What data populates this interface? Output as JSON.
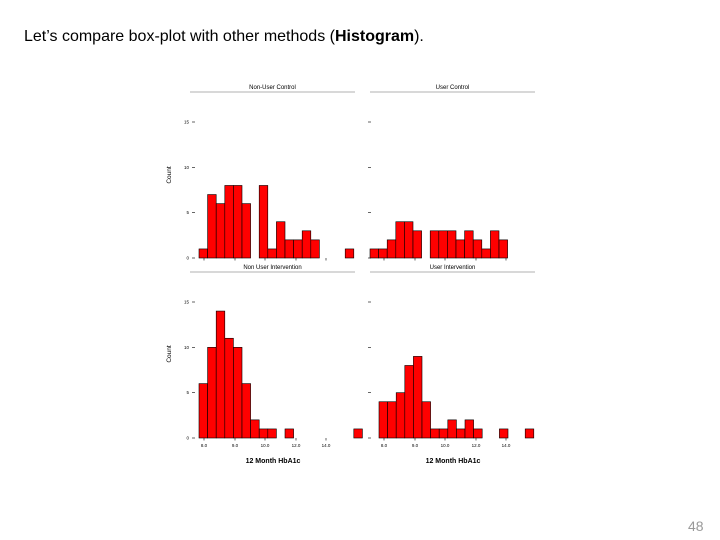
{
  "slide": {
    "title_prefix": "Let’s compare box-plot with other methods (",
    "title_emphasis": "Histogram",
    "title_suffix": ").",
    "page_number": "48"
  },
  "colors": {
    "bar_fill": "#ff0000",
    "bar_stroke": "#000000",
    "header_line": "#999999"
  },
  "chart_data": {
    "type": "bar",
    "layout": "2x2 faceted histogram panels",
    "xlabel": "12 Month HbA1c",
    "ylabel": "Count",
    "xticks": [
      "8.0",
      "9.0",
      "10.0",
      "12.0",
      "14.0"
    ],
    "panels": [
      {
        "title": "Non-User Control",
        "ytick_labels": [
          "0",
          "5",
          "10",
          "15"
        ],
        "ylim": [
          0,
          15
        ],
        "values": [
          1,
          7,
          6,
          8,
          8,
          6,
          0,
          8,
          1,
          4,
          2,
          2,
          3,
          2,
          0,
          0,
          0,
          1
        ]
      },
      {
        "title": "User Control",
        "ytick_labels": [
          "0",
          "5",
          "10",
          "15"
        ],
        "ylim": [
          0,
          15
        ],
        "values": [
          1,
          1,
          2,
          4,
          4,
          3,
          0,
          3,
          3,
          3,
          2,
          3,
          2,
          1,
          3,
          2,
          0,
          0
        ]
      },
      {
        "title": "Non User Intervention",
        "ytick_labels": [
          "0",
          "5",
          "10",
          "15"
        ],
        "ylim": [
          0,
          15
        ],
        "values": [
          6,
          10,
          14,
          11,
          10,
          6,
          2,
          1,
          1,
          0,
          1,
          0,
          0,
          0,
          0,
          0,
          0,
          0,
          1
        ]
      },
      {
        "title": "User Intervention",
        "ytick_labels": [
          "0",
          "5",
          "10",
          "15"
        ],
        "ylim": [
          0,
          15
        ],
        "values": [
          4,
          4,
          5,
          8,
          9,
          4,
          1,
          1,
          2,
          1,
          2,
          1,
          0,
          0,
          1,
          0,
          0,
          1
        ]
      }
    ]
  }
}
